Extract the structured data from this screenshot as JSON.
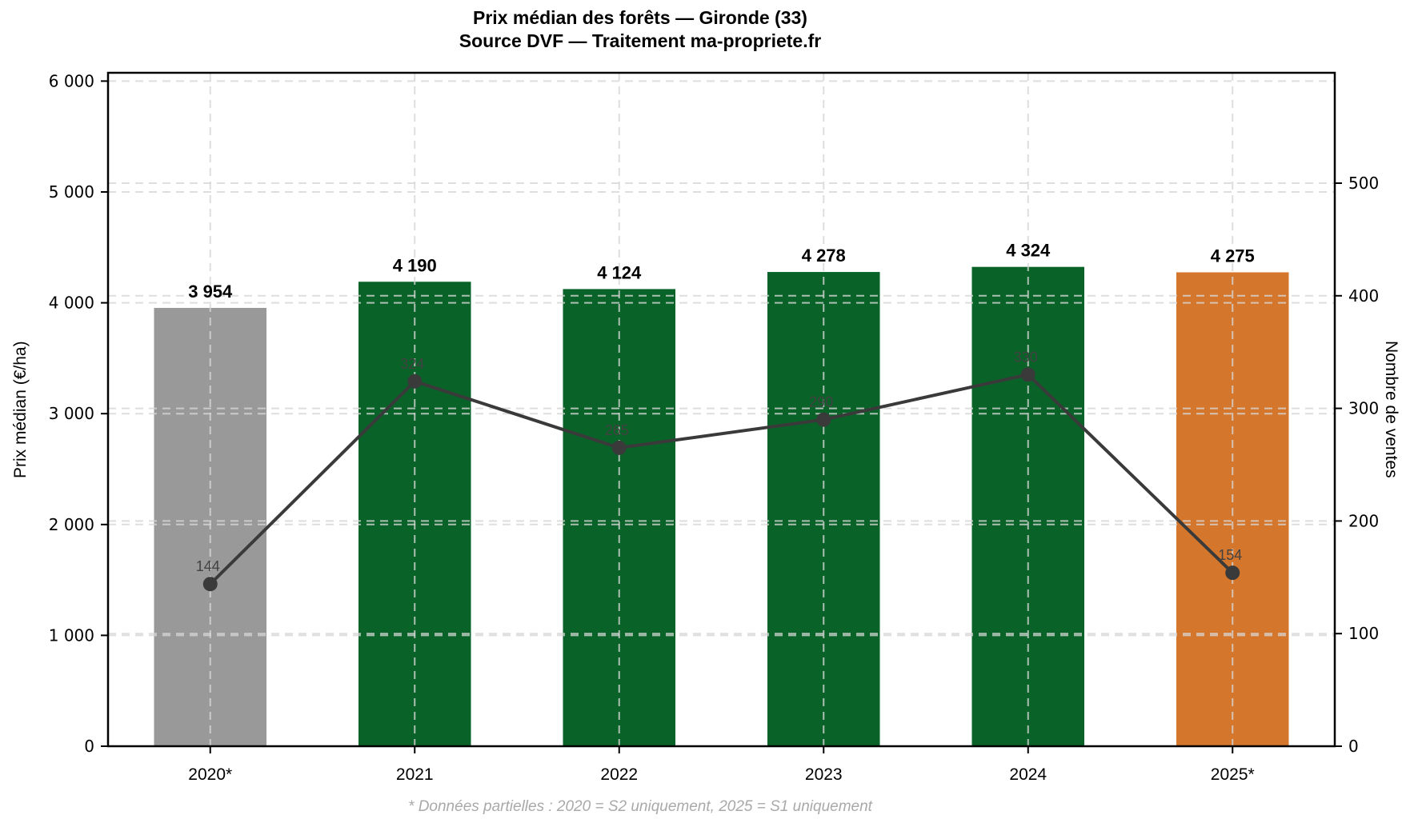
{
  "title": {
    "line1": "Prix médian des forêts — Gironde (33)",
    "line2": "Source DVF — Traitement ma-propriete.fr"
  },
  "footnote": "* Données partielles : 2020 = S2 uniquement, 2025 = S1 uniquement",
  "chart_data": {
    "type": "bar",
    "categories": [
      "2020*",
      "2021",
      "2022",
      "2023",
      "2024",
      "2025*"
    ],
    "series": [
      {
        "name": "Prix médian (€/ha)",
        "type": "bar",
        "axis": "left",
        "values": [
          3954,
          4190,
          4124,
          4278,
          4324,
          4275
        ],
        "value_labels": [
          "3 954",
          "4 190",
          "4 124",
          "4 278",
          "4 324",
          "4 275"
        ],
        "bar_colors": [
          "#999999",
          "#096329",
          "#096329",
          "#096329",
          "#096329",
          "#d4772c"
        ]
      },
      {
        "name": "Nombre de ventes",
        "type": "line",
        "axis": "right",
        "values": [
          144,
          324,
          265,
          290,
          330,
          154
        ],
        "value_labels": [
          "144",
          "324",
          "265",
          "290",
          "330",
          "154"
        ],
        "color": "#3a3a3a"
      }
    ],
    "left_axis": {
      "label": "Prix médian (€/ha)",
      "ylim": [
        0,
        6075
      ],
      "ticks": [
        0,
        1000,
        2000,
        3000,
        4000,
        5000,
        6000
      ],
      "tick_labels": [
        "0",
        "1 000",
        "2 000",
        "3 000",
        "4 000",
        "5 000",
        "6 000"
      ]
    },
    "right_axis": {
      "label": "Nombre de ventes",
      "ylim": [
        0,
        598
      ],
      "ticks": [
        0,
        100,
        200,
        300,
        400,
        500
      ],
      "tick_labels": [
        "0",
        "100",
        "200",
        "300",
        "400",
        "500"
      ]
    },
    "grid": true,
    "legend": false,
    "colors": {
      "bar_full_year": "#096329",
      "bar_partial_start": "#999999",
      "bar_partial_end": "#d4772c",
      "sales_line": "#3a3a3a",
      "gridline": "#d6d6d6",
      "spine": "#000000",
      "footnote_text": "#a9a9a9"
    }
  }
}
